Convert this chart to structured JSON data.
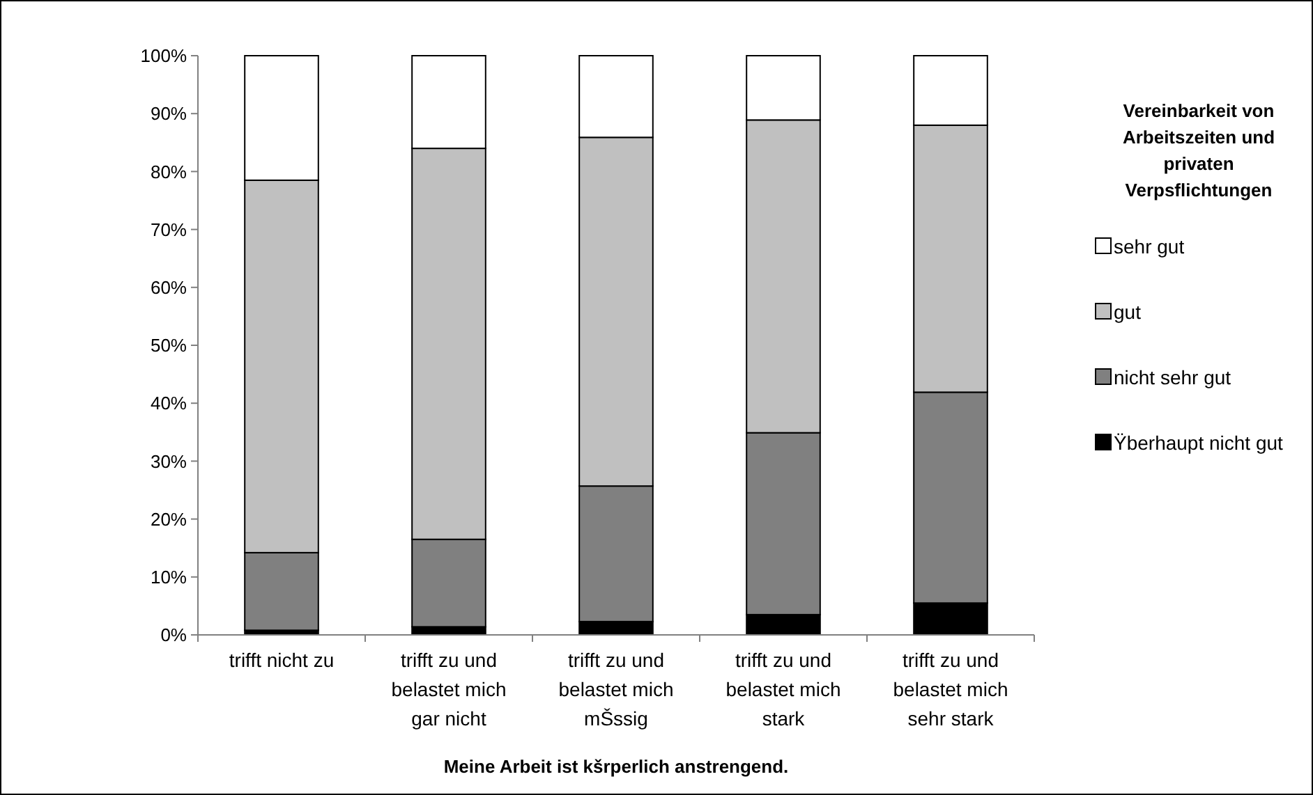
{
  "chart_data": {
    "type": "bar",
    "stacked": true,
    "xlabel": "Meine Arbeit ist kšrperlich anstrengend.",
    "legend_title": "Vereinbarkeit von Arbeitszeiten und privaten Verpsflichtungen",
    "legend": "right",
    "categories": [
      "trifft nicht zu",
      "trifft zu und belastet mich gar nicht",
      "trifft zu und belastet mich mŠssig",
      "trifft zu und belastet mich stark",
      "trifft zu und belastet mich sehr stark"
    ],
    "series": [
      {
        "name": "Ÿberhaupt nicht gut",
        "color": "#000000",
        "values": [
          0.8,
          1.4,
          2.3,
          3.5,
          5.5
        ]
      },
      {
        "name": "nicht sehr gut",
        "color": "#808080",
        "values": [
          13.4,
          15.1,
          23.4,
          31.4,
          36.4
        ]
      },
      {
        "name": "gut",
        "color": "#c0c0c0",
        "values": [
          64.3,
          67.5,
          60.2,
          54.0,
          46.1
        ]
      },
      {
        "name": "sehr gut",
        "color": "#ffffff",
        "values": [
          21.5,
          16.0,
          14.1,
          11.1,
          12.0
        ]
      }
    ],
    "ylim": [
      0,
      100
    ],
    "yticks": [
      {
        "value": 0,
        "label": "0%"
      },
      {
        "value": 10,
        "label": "10%"
      },
      {
        "value": 20,
        "label": "20%"
      },
      {
        "value": 30,
        "label": "30%"
      },
      {
        "value": 40,
        "label": "40%"
      },
      {
        "value": 50,
        "label": "50%"
      },
      {
        "value": 60,
        "label": "60%"
      },
      {
        "value": 70,
        "label": "70%"
      },
      {
        "value": 80,
        "label": "80%"
      },
      {
        "value": 90,
        "label": "90%"
      },
      {
        "value": 100,
        "label": "100%"
      }
    ]
  }
}
